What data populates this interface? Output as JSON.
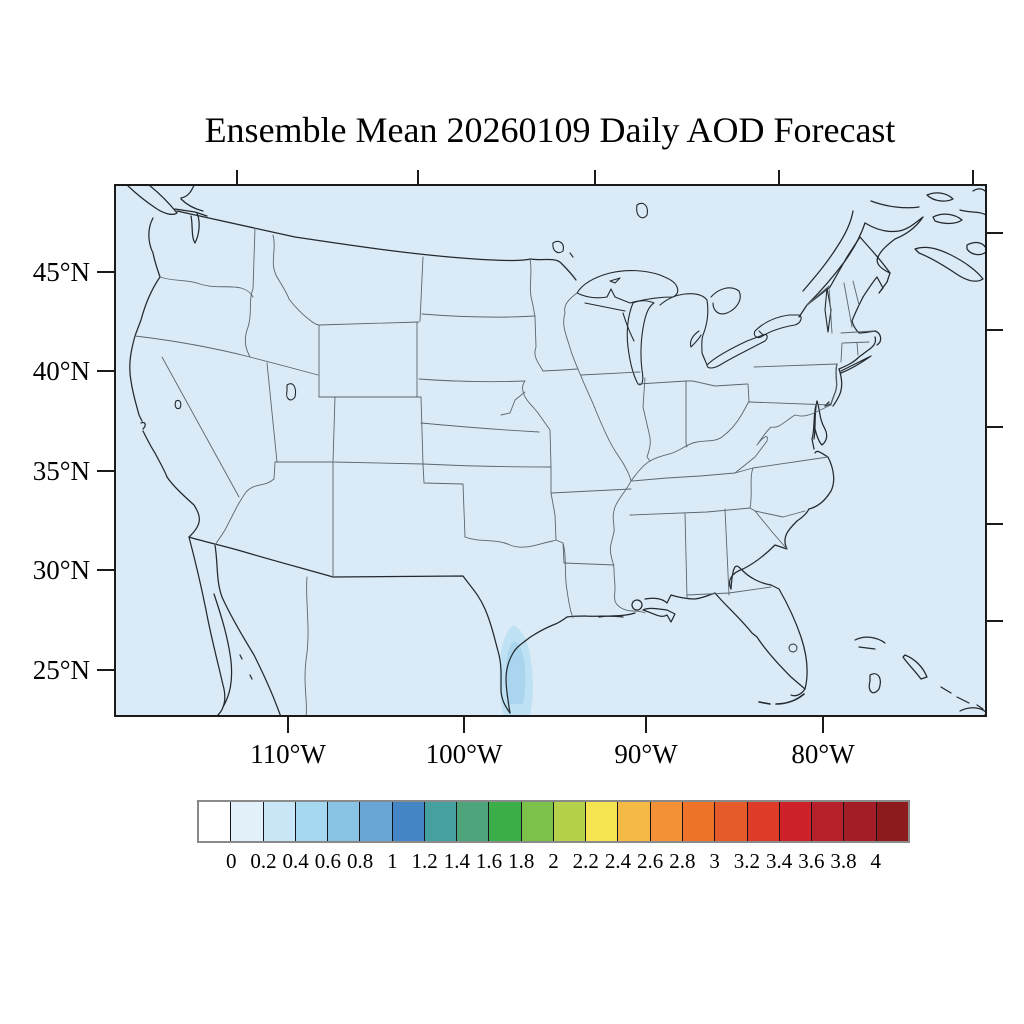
{
  "title": "Ensemble Mean 20260109 Daily AOD Forecast",
  "axes": {
    "lat_labels": [
      "45°N",
      "40°N",
      "35°N",
      "30°N",
      "25°N"
    ],
    "lon_labels": [
      "110°W",
      "100°W",
      "90°W",
      "80°W"
    ]
  },
  "colorbar": {
    "tick_labels": [
      "0",
      "0.2",
      "0.4",
      "0.6",
      "0.8",
      "1",
      "1.2",
      "1.4",
      "1.6",
      "1.8",
      "2",
      "2.2",
      "2.4",
      "2.6",
      "2.8",
      "3",
      "3.2",
      "3.4",
      "3.6",
      "3.8",
      "4"
    ],
    "colors": [
      "#FFFFFF",
      "#E1F0F9",
      "#C9E6F6",
      "#A6D7F1",
      "#8AC2E4",
      "#69A5D5",
      "#4486C5",
      "#47A0A0",
      "#4EA47B",
      "#3CAE49",
      "#7CC24A",
      "#B5D049",
      "#F6E451",
      "#F5BA45",
      "#F29135",
      "#EE7227",
      "#E55A29",
      "#DC3C28",
      "#CE2129",
      "#B6202A",
      "#A21D25",
      "#8D1B1E"
    ]
  },
  "map_colors": {
    "background": "#DAEAF6",
    "aod_patch_outer": "#BEE1F3",
    "aod_patch_inner": "#A9D6EE",
    "coast": "#23292E",
    "state_border": "#5B666D",
    "frame": "#1A1A1A"
  },
  "chart_data": {
    "type": "heatmap",
    "title": "Ensemble Mean 20260109 Daily AOD Forecast",
    "region": "Contiguous United States with southern Canada and northern Mexico",
    "lat_tick_values": [
      45,
      40,
      35,
      30,
      25
    ],
    "lon_tick_values": [
      -110,
      -100,
      -90,
      -80
    ],
    "colorbar_levels": [
      0,
      0.2,
      0.4,
      0.6,
      0.8,
      1,
      1.2,
      1.4,
      1.6,
      1.8,
      2,
      2.2,
      2.4,
      2.6,
      2.8,
      3,
      3.2,
      3.4,
      3.6,
      3.8,
      4
    ],
    "units": "Aerosol Optical Depth (dimensionless)",
    "field_summary": "AOD is below 0.2 (lightest blue) over virtually the entire domain; a small plume of 0.2-0.4 appears along the south Texas Gulf coast near Corpus Christi / Brownsville, extending to the bottom edge of the map."
  }
}
